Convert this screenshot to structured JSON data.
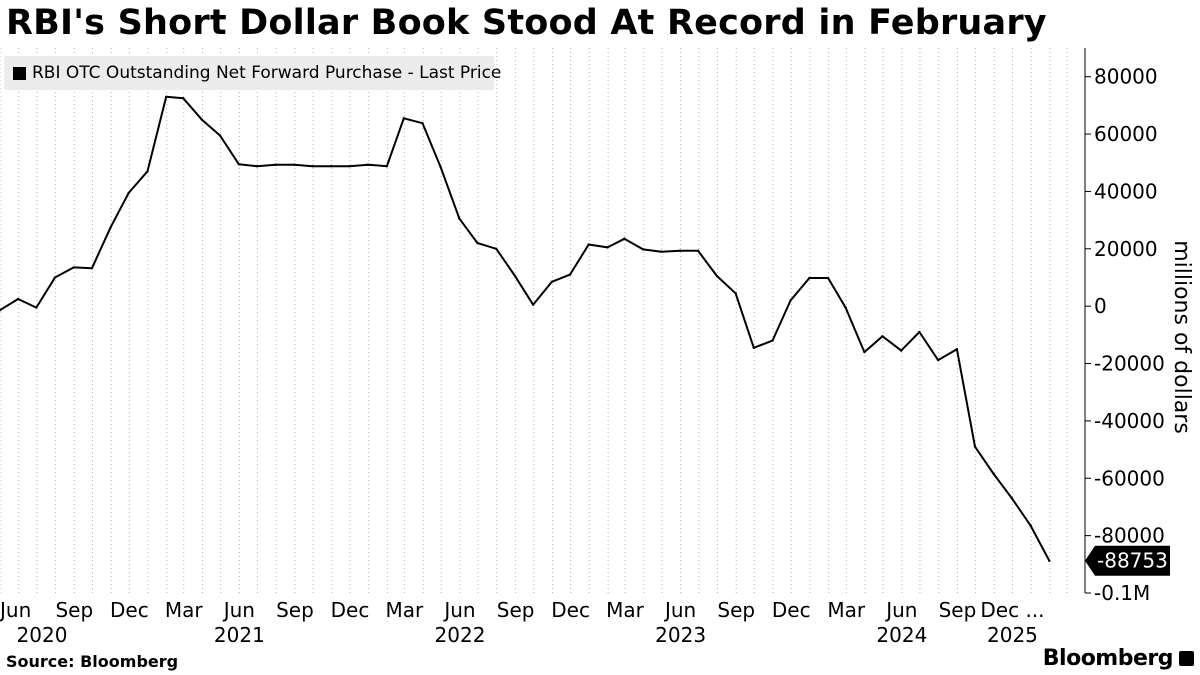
{
  "header": {
    "title": "RBI's Short Dollar Book Stood At Record in February"
  },
  "legend": {
    "label": "RBI OTC Outstanding Net Forward Purchase - Last Price"
  },
  "footer": {
    "source": "Source: Bloomberg",
    "brand": "Bloomberg"
  },
  "chart_data": {
    "type": "line",
    "title": "RBI's Short Dollar Book Stood At Record in February",
    "xlabel": "",
    "ylabel": "millions of dollars",
    "x_range": [
      "2020-05-01",
      "2025-03-31"
    ],
    "ylim": [
      -100000,
      90000
    ],
    "grid": {
      "x": true,
      "y": false
    },
    "legend_position": "top-left",
    "series": [
      {
        "name": "RBI OTC Outstanding Net Forward Purchase - Last Price",
        "color": "#000000",
        "points": [
          [
            "2020-04-30",
            -1500
          ],
          [
            "2020-05-31",
            2500
          ],
          [
            "2020-06-30",
            -500
          ],
          [
            "2020-07-31",
            10000
          ],
          [
            "2020-08-31",
            13500
          ],
          [
            "2020-09-30",
            13200
          ],
          [
            "2020-10-31",
            27500
          ],
          [
            "2020-11-30",
            39500
          ],
          [
            "2020-12-31",
            47000
          ],
          [
            "2021-01-31",
            73000
          ],
          [
            "2021-02-28",
            72500
          ],
          [
            "2021-03-31",
            65000
          ],
          [
            "2021-04-30",
            59500
          ],
          [
            "2021-05-31",
            49500
          ],
          [
            "2021-06-30",
            48800
          ],
          [
            "2021-07-31",
            49300
          ],
          [
            "2021-08-31",
            49300
          ],
          [
            "2021-09-30",
            48800
          ],
          [
            "2021-10-31",
            48800
          ],
          [
            "2021-11-30",
            48800
          ],
          [
            "2021-12-31",
            49300
          ],
          [
            "2022-01-31",
            48800
          ],
          [
            "2022-02-28",
            65500
          ],
          [
            "2022-03-31",
            63800
          ],
          [
            "2022-04-30",
            48500
          ],
          [
            "2022-05-31",
            30500
          ],
          [
            "2022-06-30",
            22000
          ],
          [
            "2022-07-31",
            20000
          ],
          [
            "2022-08-31",
            10500
          ],
          [
            "2022-09-30",
            500
          ],
          [
            "2022-10-31",
            8500
          ],
          [
            "2022-11-30",
            11000
          ],
          [
            "2022-12-31",
            21500
          ],
          [
            "2023-01-31",
            20500
          ],
          [
            "2023-02-28",
            23500
          ],
          [
            "2023-03-31",
            19800
          ],
          [
            "2023-04-30",
            19000
          ],
          [
            "2023-05-31",
            19300
          ],
          [
            "2023-06-30",
            19300
          ],
          [
            "2023-07-31",
            10500
          ],
          [
            "2023-08-31",
            4500
          ],
          [
            "2023-09-30",
            -14500
          ],
          [
            "2023-10-31",
            -12000
          ],
          [
            "2023-11-30",
            2000
          ],
          [
            "2023-12-31",
            9800
          ],
          [
            "2024-01-31",
            9800
          ],
          [
            "2024-02-29",
            -500
          ],
          [
            "2024-03-31",
            -16000
          ],
          [
            "2024-04-30",
            -10500
          ],
          [
            "2024-05-31",
            -15500
          ],
          [
            "2024-06-30",
            -9000
          ],
          [
            "2024-07-31",
            -18800
          ],
          [
            "2024-08-31",
            -15000
          ],
          [
            "2024-09-30",
            -49000
          ],
          [
            "2024-10-31",
            -58500
          ],
          [
            "2024-11-30",
            -67000
          ],
          [
            "2024-12-31",
            -76500
          ],
          [
            "2025-01-31",
            -88753
          ]
        ]
      }
    ],
    "last_value_label": "-88753",
    "y_ticks": [
      {
        "value": 80000,
        "label": "80000"
      },
      {
        "value": 60000,
        "label": "60000"
      },
      {
        "value": 40000,
        "label": "40000"
      },
      {
        "value": 20000,
        "label": "20000"
      },
      {
        "value": 0,
        "label": "0"
      },
      {
        "value": -20000,
        "label": "-20000"
      },
      {
        "value": -40000,
        "label": "-40000"
      },
      {
        "value": -60000,
        "label": "-60000"
      },
      {
        "value": -80000,
        "label": "-80000"
      },
      {
        "value": -100000,
        "label": "-0.1M"
      }
    ],
    "x_ticks": [
      {
        "date": "2020-06-01",
        "label": "Jun",
        "year": "2020"
      },
      {
        "date": "2020-09-01",
        "label": "Sep"
      },
      {
        "date": "2020-12-01",
        "label": "Dec"
      },
      {
        "date": "2021-03-01",
        "label": "Mar"
      },
      {
        "date": "2021-06-01",
        "label": "Jun",
        "year": "2021"
      },
      {
        "date": "2021-09-01",
        "label": "Sep"
      },
      {
        "date": "2021-12-01",
        "label": "Dec"
      },
      {
        "date": "2022-03-01",
        "label": "Mar"
      },
      {
        "date": "2022-06-01",
        "label": "Jun",
        "year": "2022"
      },
      {
        "date": "2022-09-01",
        "label": "Sep"
      },
      {
        "date": "2022-12-01",
        "label": "Dec"
      },
      {
        "date": "2023-03-01",
        "label": "Mar"
      },
      {
        "date": "2023-06-01",
        "label": "Jun",
        "year": "2023"
      },
      {
        "date": "2023-09-01",
        "label": "Sep"
      },
      {
        "date": "2023-12-01",
        "label": "Dec"
      },
      {
        "date": "2024-03-01",
        "label": "Mar"
      },
      {
        "date": "2024-06-01",
        "label": "Jun",
        "year": "2024"
      },
      {
        "date": "2024-09-01",
        "label": "Sep"
      },
      {
        "date": "2024-12-01",
        "label": "Dec ...",
        "year": "2025"
      }
    ]
  }
}
